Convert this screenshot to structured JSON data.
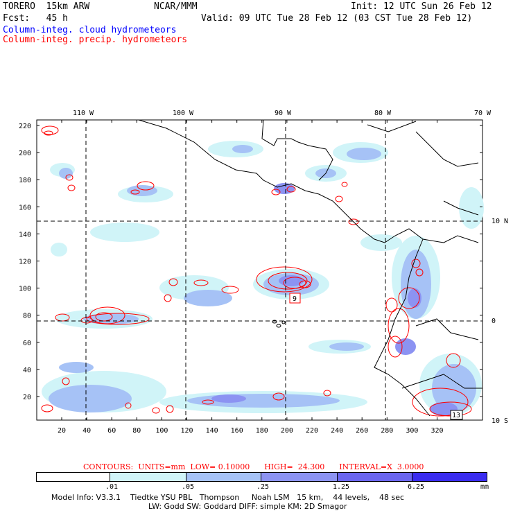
{
  "header": {
    "model": "TORERO  15km ARW",
    "org": "NCAR/MMM",
    "init": "Init: 12 UTC Sun 26 Feb 12",
    "fcst": "Fcst:   45 h",
    "valid": "Valid: 09 UTC Tue 28 Feb 12 (03 CST Tue 28 Feb 12)",
    "field1": "Column-integ. cloud hydrometeors",
    "field2": "Column-integ. precip. hydrometeors"
  },
  "map": {
    "lon_labels": [
      "110 W",
      "100 W",
      "90 W",
      "80 W",
      "70 W"
    ],
    "lat_labels": [
      "10 N",
      "0",
      "10 S"
    ],
    "y_ticks": [
      "220",
      "200",
      "180",
      "160",
      "140",
      "120",
      "100",
      "80",
      "60",
      "40",
      "20"
    ],
    "x_ticks": [
      "20",
      "40",
      "60",
      "80",
      "100",
      "120",
      "140",
      "160",
      "180",
      "200",
      "220",
      "240",
      "260",
      "280",
      "300",
      "320"
    ],
    "box_labels": [
      "9",
      "13"
    ]
  },
  "legend": {
    "contours": "CONTOURS:  UNITS=mm  LOW= 0.10000      HIGH=  24.300      INTERVAL=X  3.0000",
    "levels": [
      ".01",
      ".05",
      ".25",
      "1.25",
      "6.25"
    ],
    "unit": "mm",
    "colors": [
      "#ffffff",
      "#d0f4f8",
      "#a6c2f6",
      "#8c93f2",
      "#6a66f0",
      "#3a2cf0"
    ]
  },
  "footer": {
    "line1": "Model Info: V3.3.1    Tiedtke YSU PBL   Thompson     Noah LSM   15 km,    44 levels,    48 sec",
    "line2": "LW: Godd SW: Goddard DIFF: simple KM: 2D Smagor"
  }
}
